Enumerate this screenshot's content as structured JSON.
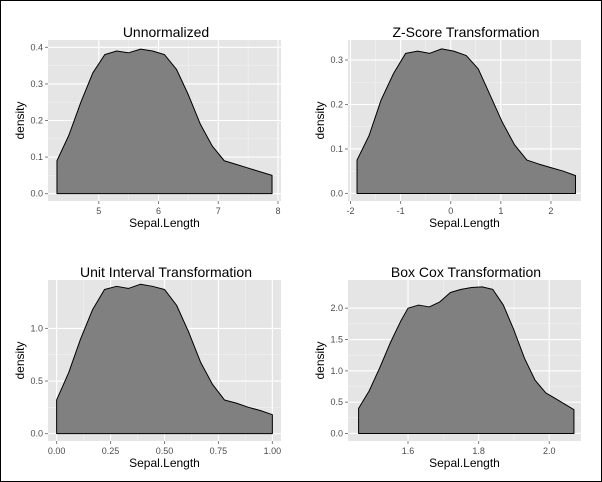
{
  "chart_data": [
    {
      "type": "area",
      "title": "Unnormalized",
      "xlabel": "Sepal.Length",
      "ylabel": "density",
      "xlim": [
        4.15,
        8.05
      ],
      "ylim": [
        -0.02,
        0.42
      ],
      "xticks": [
        5,
        6,
        7,
        8
      ],
      "xtick_labels": [
        "5",
        "6",
        "7",
        "8"
      ],
      "yticks": [
        0.0,
        0.1,
        0.2,
        0.3,
        0.4
      ],
      "ytick_labels": [
        "0.0",
        "0.1",
        "0.2",
        "0.3",
        "0.4"
      ],
      "grid": true,
      "series": [
        {
          "x": [
            4.3,
            4.5,
            4.7,
            4.9,
            5.1,
            5.3,
            5.5,
            5.7,
            5.9,
            6.1,
            6.3,
            6.5,
            6.7,
            6.9,
            7.1,
            7.3,
            7.5,
            7.7,
            7.9
          ],
          "y": [
            0.09,
            0.16,
            0.25,
            0.33,
            0.38,
            0.39,
            0.385,
            0.395,
            0.39,
            0.38,
            0.34,
            0.27,
            0.19,
            0.13,
            0.09,
            0.08,
            0.07,
            0.06,
            0.05
          ]
        }
      ]
    },
    {
      "type": "area",
      "title": "Z-Score Transformation",
      "xlabel": "Sepal.Length",
      "ylabel": "density",
      "xlim": [
        -2.05,
        2.6
      ],
      "ylim": [
        -0.017,
        0.345
      ],
      "xticks": [
        -2,
        -1,
        0,
        1,
        2
      ],
      "xtick_labels": [
        "-2",
        "-1",
        "0",
        "1",
        "2"
      ],
      "yticks": [
        0.0,
        0.1,
        0.2,
        0.3
      ],
      "ytick_labels": [
        "0.0",
        "0.1",
        "0.2",
        "0.3"
      ],
      "grid": true,
      "series": [
        {
          "x": [
            -1.87,
            -1.63,
            -1.39,
            -1.14,
            -0.9,
            -0.66,
            -0.42,
            -0.18,
            0.06,
            0.31,
            0.55,
            0.79,
            1.03,
            1.27,
            1.52,
            1.76,
            2.0,
            2.25,
            2.49
          ],
          "y": [
            0.075,
            0.13,
            0.21,
            0.27,
            0.315,
            0.32,
            0.315,
            0.325,
            0.32,
            0.31,
            0.28,
            0.22,
            0.16,
            0.11,
            0.075,
            0.066,
            0.058,
            0.05,
            0.04
          ]
        }
      ]
    },
    {
      "type": "area",
      "title": "Unit Interval Transformation",
      "xlabel": "Sepal.Length",
      "ylabel": "density",
      "xlim": [
        -0.04,
        1.04
      ],
      "ylim": [
        -0.07,
        1.46
      ],
      "xticks": [
        0.0,
        0.25,
        0.5,
        0.75,
        1.0
      ],
      "xtick_labels": [
        "0.00",
        "0.25",
        "0.50",
        "0.75",
        "1.00"
      ],
      "yticks": [
        0.0,
        0.5,
        1.0
      ],
      "ytick_labels": [
        "0.0",
        "0.5",
        "1.0"
      ],
      "grid": true,
      "series": [
        {
          "x": [
            0.0,
            0.056,
            0.111,
            0.167,
            0.222,
            0.278,
            0.333,
            0.389,
            0.444,
            0.5,
            0.556,
            0.611,
            0.667,
            0.722,
            0.778,
            0.833,
            0.889,
            0.944,
            1.0
          ],
          "y": [
            0.32,
            0.58,
            0.9,
            1.18,
            1.37,
            1.4,
            1.38,
            1.42,
            1.4,
            1.37,
            1.22,
            0.97,
            0.68,
            0.47,
            0.32,
            0.29,
            0.25,
            0.22,
            0.18
          ]
        }
      ]
    },
    {
      "type": "area",
      "title": "Box Cox Transformation",
      "xlabel": "Sepal.Length",
      "ylabel": "density",
      "xlim": [
        1.43,
        2.09
      ],
      "ylim": [
        -0.12,
        2.45
      ],
      "xticks": [
        1.6,
        1.8,
        2.0
      ],
      "xtick_labels": [
        "1.6",
        "1.8",
        "2.0"
      ],
      "yticks": [
        0.0,
        0.5,
        1.0,
        1.5,
        2.0
      ],
      "ytick_labels": [
        "0.0",
        "0.5",
        "1.0",
        "1.5",
        "2.0"
      ],
      "grid": true,
      "series": [
        {
          "x": [
            1.46,
            1.49,
            1.52,
            1.55,
            1.58,
            1.6,
            1.63,
            1.66,
            1.69,
            1.72,
            1.75,
            1.78,
            1.81,
            1.84,
            1.87,
            1.9,
            1.93,
            1.96,
            1.99,
            2.02,
            2.07
          ],
          "y": [
            0.4,
            0.68,
            1.05,
            1.45,
            1.8,
            2.0,
            2.05,
            2.02,
            2.1,
            2.25,
            2.3,
            2.33,
            2.34,
            2.3,
            2.05,
            1.65,
            1.2,
            0.85,
            0.65,
            0.55,
            0.38
          ]
        }
      ]
    }
  ],
  "colors": {
    "panel_background": "#e5e5e5",
    "grid_major": "#ffffff",
    "area_fill": "#808080",
    "outline": "#000000",
    "tick_text": "#4d4d4d"
  }
}
